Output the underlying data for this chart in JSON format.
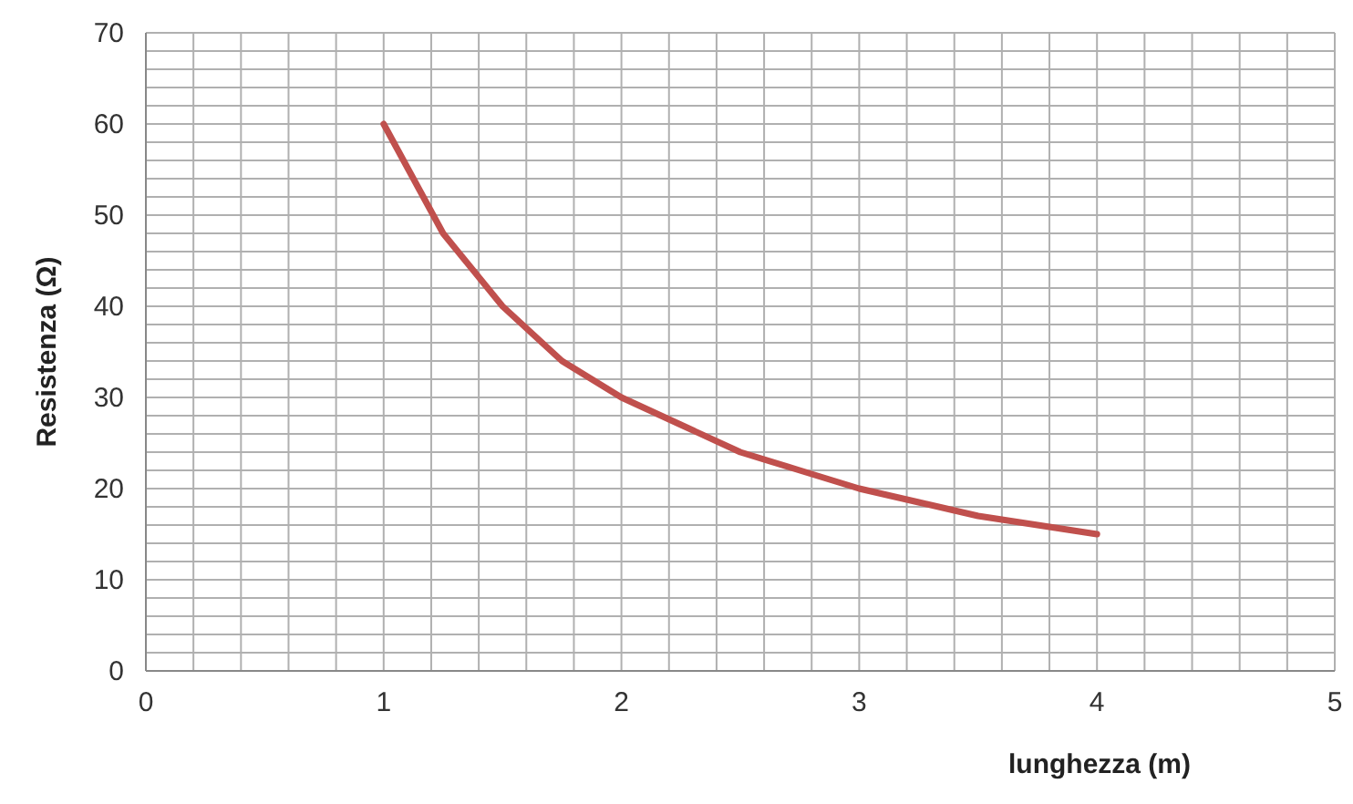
{
  "chart_data": {
    "type": "line",
    "xlabel": "lunghezza (m)",
    "ylabel": "Resistenza (Ω)",
    "x": [
      1,
      1.25,
      1.5,
      1.75,
      2,
      2.25,
      2.5,
      2.75,
      3,
      3.25,
      3.5,
      3.75,
      4
    ],
    "series": [
      {
        "color": "#c0504d",
        "values": [
          60,
          48,
          40,
          34,
          30,
          27,
          24,
          22,
          20,
          18.5,
          17,
          16,
          15
        ]
      }
    ],
    "xlim": [
      0,
      5
    ],
    "xticks": [
      0,
      {
        "value": 0.2,
        "label": null
      },
      {
        "value": 0.4,
        "label": null
      },
      {
        "value": 0.6,
        "label": null
      },
      {
        "value": 0.8,
        "label": null
      },
      1,
      {
        "value": 1.2,
        "label": null
      },
      {
        "value": 1.4,
        "label": null
      },
      {
        "value": 1.6,
        "label": null
      },
      {
        "value": 1.8,
        "label": null
      },
      2,
      {
        "value": 2.2,
        "label": null
      },
      {
        "value": 2.4,
        "label": null
      },
      {
        "value": 2.6,
        "label": null
      },
      {
        "value": 2.8,
        "label": null
      },
      3,
      {
        "value": 3.2,
        "label": null
      },
      {
        "value": 3.4,
        "label": null
      },
      {
        "value": 3.6,
        "label": null
      },
      {
        "value": 3.8,
        "label": null
      },
      4,
      {
        "value": 4.2,
        "label": null
      },
      {
        "value": 4.4,
        "label": null
      },
      {
        "value": 4.6,
        "label": null
      },
      {
        "value": 4.8,
        "label": null
      },
      5
    ],
    "ylim": [
      0,
      70
    ],
    "yticks": [
      0,
      {
        "value": 2,
        "label": null
      },
      {
        "value": 4,
        "label": null
      },
      {
        "value": 6,
        "label": null
      },
      {
        "value": 8,
        "label": null
      },
      10,
      {
        "value": 12,
        "label": null
      },
      {
        "value": 14,
        "label": null
      },
      {
        "value": 16,
        "label": null
      },
      {
        "value": 18,
        "label": null
      },
      20,
      {
        "value": 22,
        "label": null
      },
      {
        "value": 24,
        "label": null
      },
      {
        "value": 26,
        "label": null
      },
      {
        "value": 28,
        "label": null
      },
      30,
      {
        "value": 32,
        "label": null
      },
      {
        "value": 34,
        "label": null
      },
      {
        "value": 36,
        "label": null
      },
      {
        "value": 38,
        "label": null
      },
      40,
      {
        "value": 42,
        "label": null
      },
      {
        "value": 44,
        "label": null
      },
      {
        "value": 46,
        "label": null
      },
      {
        "value": 48,
        "label": null
      },
      50,
      {
        "value": 52,
        "label": null
      },
      {
        "value": 54,
        "label": null
      },
      {
        "value": 56,
        "label": null
      },
      {
        "value": 58,
        "label": null
      },
      60,
      {
        "value": 62,
        "label": null
      },
      {
        "value": 64,
        "label": null
      },
      {
        "value": 66,
        "label": null
      },
      {
        "value": 68,
        "label": null
      },
      70
    ],
    "grid": true,
    "marker": "none",
    "line_style": "solid",
    "legend": false
  }
}
